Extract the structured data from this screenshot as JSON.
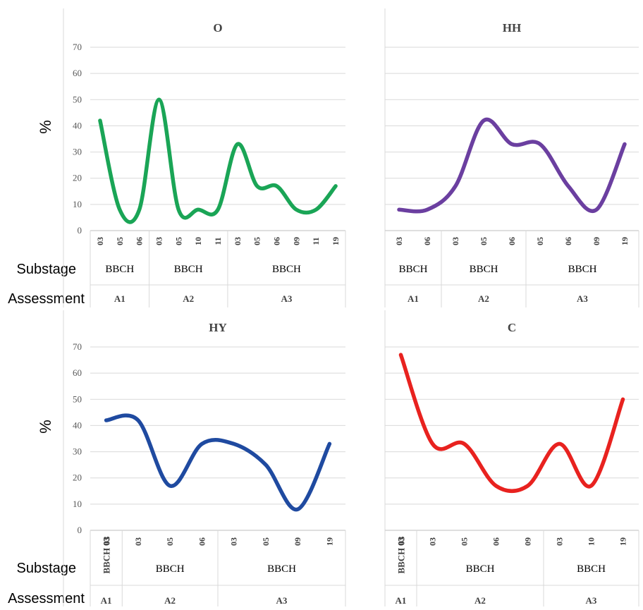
{
  "row_labels": {
    "percent": "%",
    "substage": "Substage",
    "assessment": "Assessment"
  },
  "chart_data": [
    {
      "type": "line",
      "title": "O",
      "color": "#1aa556",
      "ylim": [
        0,
        70
      ],
      "yticks": [
        0,
        10,
        20,
        30,
        40,
        50,
        60,
        70
      ],
      "categories": [
        "03",
        "05",
        "06",
        "03",
        "05",
        "10",
        "11",
        "03",
        "05",
        "06",
        "09",
        "11",
        "19"
      ],
      "values": [
        42,
        8,
        8,
        50,
        8,
        8,
        8,
        33,
        17,
        17,
        8,
        8,
        17
      ],
      "substage_groups": [
        {
          "label": "BBCH",
          "count": 3,
          "vertical": false
        },
        {
          "label": "BBCH",
          "count": 4,
          "vertical": false
        },
        {
          "label": "BBCH",
          "count": 6,
          "vertical": false
        }
      ],
      "assessment_groups": [
        {
          "label": "A1",
          "count": 3
        },
        {
          "label": "A2",
          "count": 4
        },
        {
          "label": "A3",
          "count": 6
        }
      ],
      "show_yaxis": true
    },
    {
      "type": "line",
      "title": "HH",
      "color": "#6b3fa0",
      "ylim": [
        0,
        70
      ],
      "yticks": [
        0,
        10,
        20,
        30,
        40,
        50,
        60,
        70
      ],
      "categories": [
        "03",
        "06",
        "03",
        "05",
        "06",
        "05",
        "06",
        "09",
        "19"
      ],
      "values": [
        8,
        8,
        17,
        42,
        33,
        33,
        17,
        8,
        33
      ],
      "substage_groups": [
        {
          "label": "BBCH",
          "count": 2,
          "vertical": false
        },
        {
          "label": "BBCH",
          "count": 3,
          "vertical": false
        },
        {
          "label": "BBCH",
          "count": 4,
          "vertical": false
        }
      ],
      "assessment_groups": [
        {
          "label": "A1",
          "count": 2
        },
        {
          "label": "A2",
          "count": 3
        },
        {
          "label": "A3",
          "count": 4
        }
      ],
      "show_yaxis": false
    },
    {
      "type": "line",
      "title": "HY",
      "color": "#1f4aa0",
      "ylim": [
        0,
        70
      ],
      "yticks": [
        0,
        10,
        20,
        30,
        40,
        50,
        60,
        70
      ],
      "categories": [
        "03",
        "03",
        "05",
        "06",
        "03",
        "05",
        "09",
        "19"
      ],
      "values": [
        42,
        42,
        17,
        33,
        33,
        25,
        8,
        33
      ],
      "substage_groups": [
        {
          "label": "BBCH 03",
          "count": 1,
          "vertical": true
        },
        {
          "label": "BBCH",
          "count": 3,
          "vertical": false
        },
        {
          "label": "BBCH",
          "count": 4,
          "vertical": false
        }
      ],
      "assessment_groups": [
        {
          "label": "A1",
          "count": 1
        },
        {
          "label": "A2",
          "count": 3
        },
        {
          "label": "A3",
          "count": 4
        }
      ],
      "show_yaxis": true
    },
    {
      "type": "line",
      "title": "C",
      "color": "#e8221f",
      "ylim": [
        0,
        70
      ],
      "yticks": [
        0,
        10,
        20,
        30,
        40,
        50,
        60,
        70
      ],
      "categories": [
        "03",
        "03",
        "05",
        "06",
        "09",
        "03",
        "10",
        "19"
      ],
      "values": [
        67,
        33,
        33,
        17,
        17,
        33,
        17,
        50
      ],
      "substage_groups": [
        {
          "label": "BBCH 03",
          "count": 1,
          "vertical": true
        },
        {
          "label": "BBCH",
          "count": 4,
          "vertical": false
        },
        {
          "label": "BBCH",
          "count": 3,
          "vertical": false
        }
      ],
      "assessment_groups": [
        {
          "label": "A1",
          "count": 1
        },
        {
          "label": "A2",
          "count": 4
        },
        {
          "label": "A3",
          "count": 3
        }
      ],
      "show_yaxis": false
    }
  ]
}
